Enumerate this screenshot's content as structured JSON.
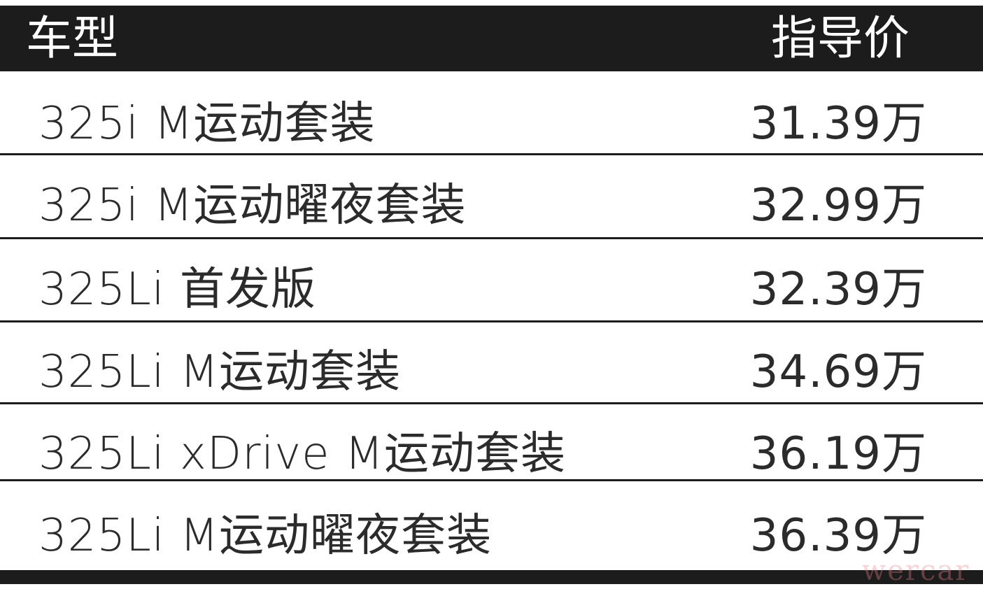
{
  "header": {
    "model_label": "车型",
    "price_label": "指导价"
  },
  "rows": [
    {
      "model": "325i M运动套装",
      "price": "31.39万"
    },
    {
      "model": "325i M运动曜夜套装",
      "price": "32.99万"
    },
    {
      "model": "325Li 首发版",
      "price": "32.39万"
    },
    {
      "model": "325Li M运动套装",
      "price": "34.69万"
    },
    {
      "model": "325Li xDrive M运动套装",
      "price": "36.19万"
    },
    {
      "model": "325Li M运动曜夜套装",
      "price": "36.39万"
    }
  ],
  "watermark": "wercar"
}
